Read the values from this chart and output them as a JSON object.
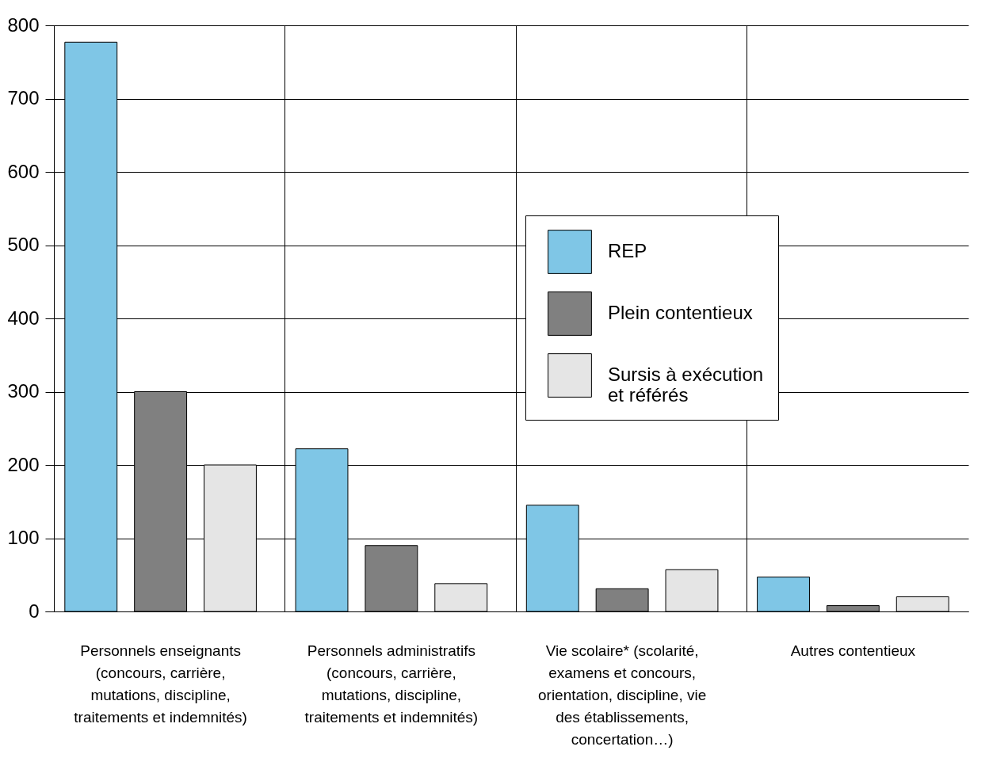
{
  "chart_data": {
    "type": "bar",
    "categories": [
      "Personnels enseignants (concours, carrière, mutations, discipline, traitements et indemnités)",
      "Personnels administratifs (concours, carrière, mutations, discipline, traitements et indemnités)",
      "Vie scolaire* (scolarité, examens et concours, orientation, discipline, vie des établissements, concertation…)",
      "Autres contentieux"
    ],
    "series": [
      {
        "name": "REP",
        "color": "#7fc6e6",
        "values": [
          777,
          222,
          145,
          47
        ]
      },
      {
        "name": "Plein contentieux",
        "color": "#808080",
        "values": [
          300,
          90,
          31,
          8
        ]
      },
      {
        "name": "Sursis à exécution et référés",
        "color": "#e5e5e5",
        "values": [
          200,
          38,
          57,
          20
        ]
      }
    ],
    "ylim": [
      0,
      800
    ],
    "yticks": [
      0,
      100,
      200,
      300,
      400,
      500,
      600,
      700,
      800
    ],
    "grid": true,
    "legend": "top right"
  }
}
